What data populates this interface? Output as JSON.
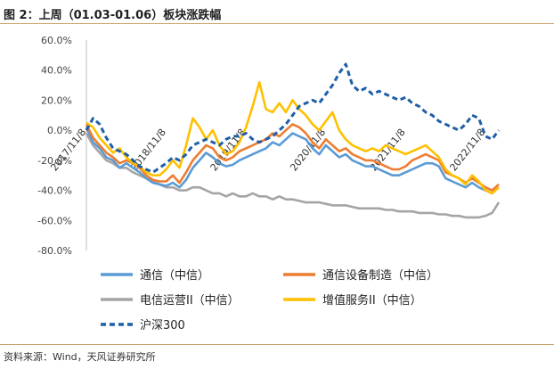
{
  "header": {
    "title": "图 2：上周（01.03-01.06）板块涨跌幅"
  },
  "footer": {
    "source": "资料来源：Wind，天风证券研究所"
  },
  "chart_data": {
    "type": "line",
    "title": "图 2：上周（01.03-01.06）板块涨跌幅",
    "xlabel": "",
    "ylabel": "",
    "ylim": [
      -80,
      60
    ],
    "ytick_labels": [
      "60.0%",
      "40.0%",
      "20.0%",
      "0.0%",
      "-20.0%",
      "-40.0%",
      "-60.0%",
      "-80.0%"
    ],
    "ytick_values": [
      60,
      40,
      20,
      0,
      -20,
      -40,
      -60,
      -80
    ],
    "x_tick_labels": [
      "2017/11/8",
      "2018/11/8",
      "2019/11/8",
      "2020/11/8",
      "2021/11/8",
      "2022/11/8"
    ],
    "x_tick_positions": [
      0,
      12,
      24,
      36,
      48,
      60
    ],
    "x_range": [
      0,
      62
    ],
    "legend_position": "bottom",
    "series": [
      {
        "name": "通信（中信）",
        "color": "#5b9bd5",
        "dash": "solid",
        "x": [
          0,
          1,
          2,
          3,
          4,
          5,
          6,
          7,
          8,
          9,
          10,
          11,
          12,
          13,
          14,
          15,
          16,
          17,
          18,
          19,
          20,
          21,
          22,
          23,
          24,
          25,
          26,
          27,
          28,
          29,
          30,
          31,
          32,
          33,
          34,
          35,
          36,
          37,
          38,
          39,
          40,
          41,
          42,
          43,
          44,
          45,
          46,
          47,
          48,
          49,
          50,
          51,
          52,
          53,
          54,
          55,
          56,
          57,
          58,
          59,
          60,
          61,
          62
        ],
        "values": [
          2,
          -8,
          -12,
          -18,
          -20,
          -25,
          -22,
          -25,
          -28,
          -32,
          -35,
          -36,
          -37,
          -35,
          -38,
          -33,
          -25,
          -20,
          -15,
          -18,
          -22,
          -24,
          -23,
          -20,
          -18,
          -16,
          -14,
          -12,
          -8,
          -10,
          -6,
          -2,
          -4,
          -6,
          -12,
          -16,
          -10,
          -14,
          -18,
          -16,
          -20,
          -22,
          -24,
          -24,
          -26,
          -28,
          -30,
          -30,
          -28,
          -26,
          -24,
          -22,
          -22,
          -24,
          -32,
          -34,
          -36,
          -38,
          -35,
          -38,
          -40,
          -42,
          -38
        ]
      },
      {
        "name": "通信设备制造（中信）",
        "color": "#ed7d31",
        "dash": "solid",
        "x": [
          0,
          1,
          2,
          3,
          4,
          5,
          6,
          7,
          8,
          9,
          10,
          11,
          12,
          13,
          14,
          15,
          16,
          17,
          18,
          19,
          20,
          21,
          22,
          23,
          24,
          25,
          26,
          27,
          28,
          29,
          30,
          31,
          32,
          33,
          34,
          35,
          36,
          37,
          38,
          39,
          40,
          41,
          42,
          43,
          44,
          45,
          46,
          47,
          48,
          49,
          50,
          51,
          52,
          53,
          54,
          55,
          56,
          57,
          58,
          59,
          60,
          61,
          62
        ],
        "values": [
          4,
          -5,
          -10,
          -15,
          -18,
          -22,
          -20,
          -22,
          -25,
          -30,
          -33,
          -34,
          -34,
          -30,
          -35,
          -28,
          -20,
          -15,
          -10,
          -12,
          -18,
          -20,
          -18,
          -14,
          -12,
          -10,
          -8,
          -6,
          -2,
          -4,
          0,
          4,
          2,
          -2,
          -8,
          -12,
          -6,
          -10,
          -14,
          -12,
          -16,
          -18,
          -20,
          -20,
          -22,
          -24,
          -26,
          -26,
          -24,
          -20,
          -18,
          -16,
          -18,
          -20,
          -28,
          -30,
          -32,
          -35,
          -32,
          -35,
          -38,
          -40,
          -36
        ]
      },
      {
        "name": "电信运营II（中信）",
        "color": "#a5a5a5",
        "dash": "solid",
        "x": [
          0,
          1,
          2,
          3,
          4,
          5,
          6,
          7,
          8,
          9,
          10,
          11,
          12,
          13,
          14,
          15,
          16,
          17,
          18,
          19,
          20,
          21,
          22,
          23,
          24,
          25,
          26,
          27,
          28,
          29,
          30,
          31,
          32,
          33,
          34,
          35,
          36,
          37,
          38,
          39,
          40,
          41,
          42,
          43,
          44,
          45,
          46,
          47,
          48,
          49,
          50,
          51,
          52,
          53,
          54,
          55,
          56,
          57,
          58,
          59,
          60,
          61,
          62
        ],
        "values": [
          -2,
          -10,
          -15,
          -20,
          -22,
          -25,
          -25,
          -28,
          -30,
          -32,
          -34,
          -36,
          -38,
          -38,
          -40,
          -40,
          -38,
          -38,
          -40,
          -42,
          -42,
          -44,
          -42,
          -44,
          -44,
          -42,
          -44,
          -44,
          -46,
          -44,
          -46,
          -46,
          -47,
          -48,
          -48,
          -48,
          -49,
          -50,
          -50,
          -50,
          -51,
          -52,
          -52,
          -52,
          -52,
          -53,
          -53,
          -54,
          -54,
          -54,
          -55,
          -55,
          -55,
          -56,
          -56,
          -57,
          -57,
          -58,
          -58,
          -58,
          -57,
          -55,
          -48
        ]
      },
      {
        "name": "增值服务II（中信）",
        "color": "#ffc000",
        "dash": "solid",
        "x": [
          0,
          1,
          2,
          3,
          4,
          5,
          6,
          7,
          8,
          9,
          10,
          11,
          12,
          13,
          14,
          15,
          16,
          17,
          18,
          19,
          20,
          21,
          22,
          23,
          24,
          25,
          26,
          27,
          28,
          29,
          30,
          31,
          32,
          33,
          34,
          35,
          36,
          37,
          38,
          39,
          40,
          41,
          42,
          43,
          44,
          45,
          46,
          47,
          48,
          49,
          50,
          51,
          52,
          53,
          54,
          55,
          56,
          57,
          58,
          59,
          60,
          61,
          62
        ],
        "values": [
          5,
          2,
          -5,
          -10,
          -15,
          -12,
          -18,
          -22,
          -24,
          -28,
          -30,
          -30,
          -26,
          -20,
          -25,
          -10,
          8,
          2,
          -6,
          0,
          -10,
          -16,
          -14,
          -8,
          2,
          16,
          32,
          14,
          12,
          18,
          12,
          20,
          14,
          10,
          4,
          0,
          6,
          12,
          0,
          -6,
          -10,
          -12,
          -14,
          -12,
          -14,
          -10,
          -12,
          -14,
          -16,
          -14,
          -12,
          -10,
          -14,
          -18,
          -26,
          -30,
          -32,
          -36,
          -30,
          -34,
          -40,
          -42,
          -38
        ]
      },
      {
        "name": "沪深300",
        "color": "#1f5fa8",
        "dash": "dashed",
        "x": [
          0,
          1,
          2,
          3,
          4,
          5,
          6,
          7,
          8,
          9,
          10,
          11,
          12,
          13,
          14,
          15,
          16,
          17,
          18,
          19,
          20,
          21,
          22,
          23,
          24,
          25,
          26,
          27,
          28,
          29,
          30,
          31,
          32,
          33,
          34,
          35,
          36,
          37,
          38,
          39,
          40,
          41,
          42,
          43,
          44,
          45,
          46,
          47,
          48,
          49,
          50,
          51,
          52,
          53,
          54,
          55,
          56,
          57,
          58,
          59,
          60,
          61,
          62
        ],
        "values": [
          0,
          8,
          4,
          -5,
          -12,
          -14,
          -16,
          -20,
          -24,
          -26,
          -28,
          -25,
          -22,
          -18,
          -20,
          -16,
          -10,
          -8,
          -6,
          -8,
          -10,
          -6,
          -4,
          -4,
          -2,
          -6,
          -8,
          -6,
          -4,
          0,
          4,
          10,
          16,
          18,
          20,
          18,
          24,
          30,
          38,
          44,
          30,
          26,
          28,
          24,
          26,
          24,
          22,
          20,
          22,
          18,
          16,
          12,
          10,
          6,
          4,
          2,
          0,
          4,
          10,
          8,
          -4,
          -6,
          0
        ]
      }
    ]
  }
}
